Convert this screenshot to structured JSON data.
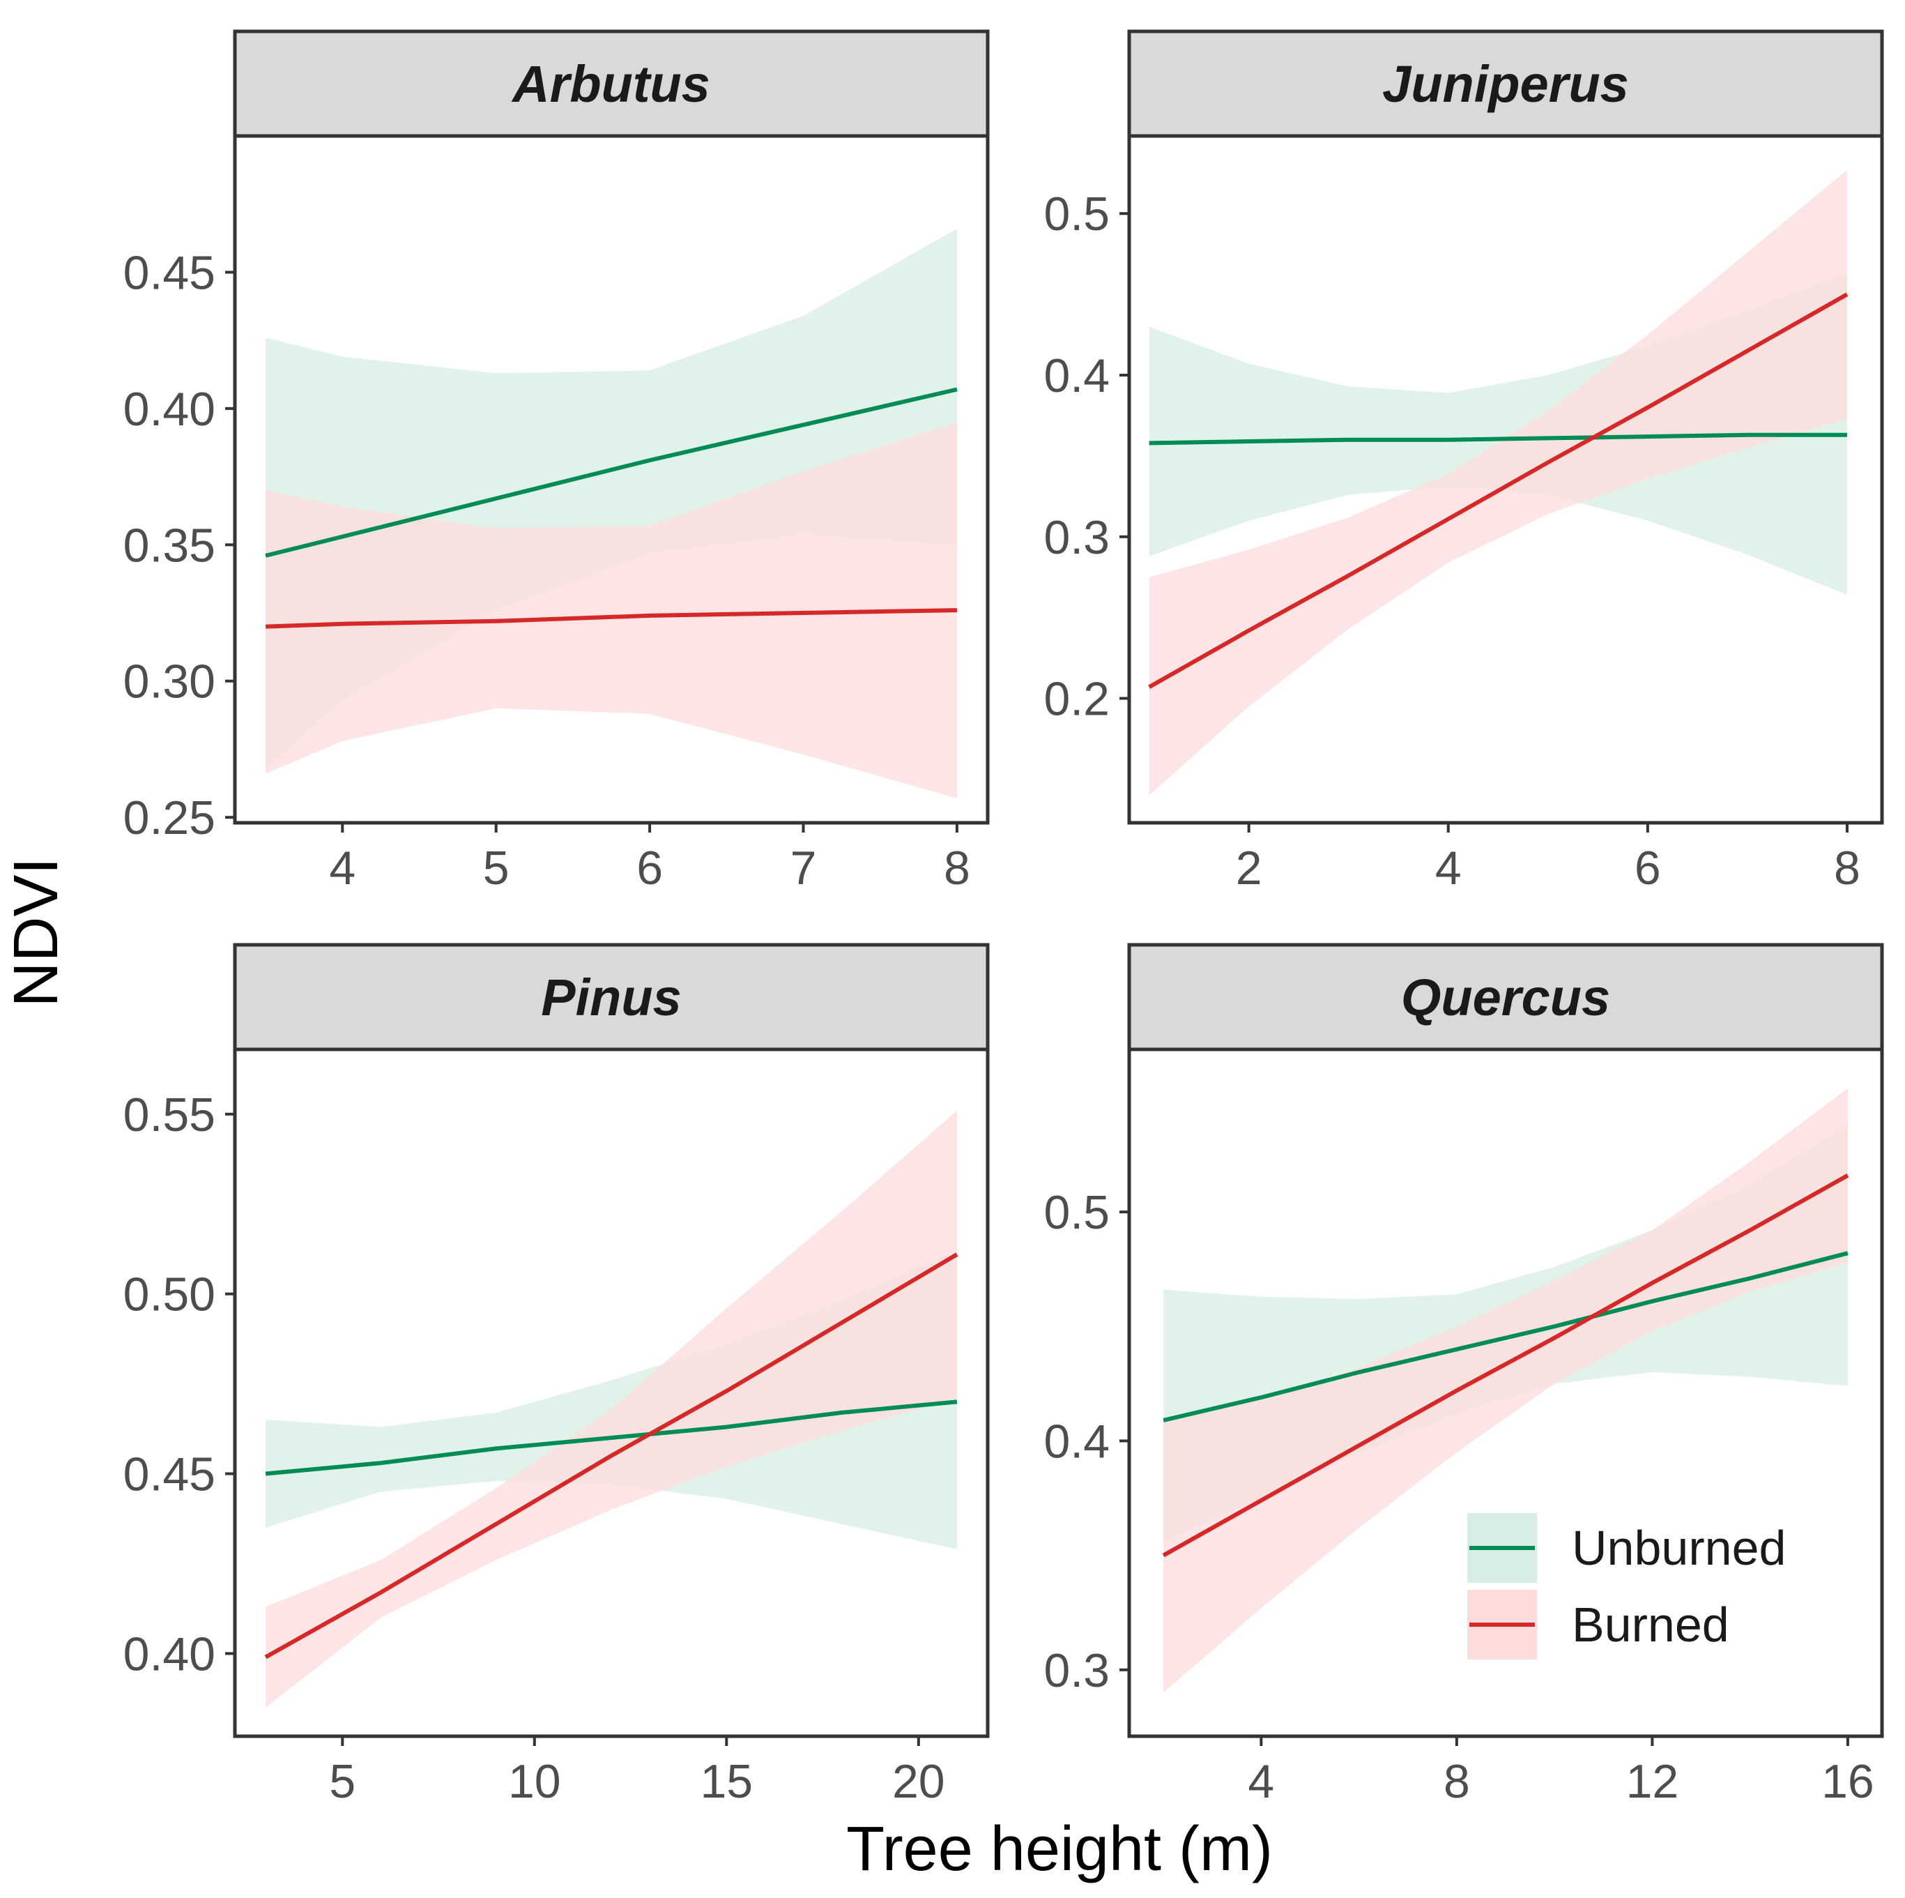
{
  "chart_data": {
    "type": "line",
    "xlabel": "Tree height (m)",
    "ylabel": "NDVI",
    "colors": {
      "Unburned": "#008c54",
      "Burned": "#d62828",
      "Unburned_band": "#d7ede3",
      "Burned_band": "#fddcdc",
      "strip": "#d9d9d9",
      "frame": "#333333"
    },
    "legend": {
      "placement": "bottom-right of Quercus panel",
      "items": [
        {
          "name": "Unburned",
          "color": "#008c54"
        },
        {
          "name": "Burned",
          "color": "#d62828"
        }
      ]
    },
    "panels": [
      {
        "title": "Arbutus",
        "xlim": [
          3.3,
          8.2
        ],
        "ylim": [
          0.248,
          0.5
        ],
        "xticks": [
          4,
          5,
          6,
          7,
          8
        ],
        "xtick_labels": [
          "4",
          "5",
          "6",
          "7",
          "8"
        ],
        "yticks": [
          0.25,
          0.3,
          0.35,
          0.4,
          0.45
        ],
        "ytick_labels": [
          "0.25",
          "0.30",
          "0.35",
          "0.40",
          "0.45"
        ],
        "series": [
          {
            "name": "Unburned",
            "x": [
              3.5,
              4,
              5,
              6,
              7,
              8
            ],
            "y": [
              0.346,
              0.353,
              0.367,
              0.381,
              0.394,
              0.407
            ],
            "lower": [
              0.268,
              0.293,
              0.326,
              0.347,
              0.354,
              0.35
            ],
            "upper": [
              0.426,
              0.419,
              0.413,
              0.414,
              0.434,
              0.466
            ]
          },
          {
            "name": "Burned",
            "x": [
              3.5,
              4,
              5,
              6,
              7,
              8
            ],
            "y": [
              0.32,
              0.321,
              0.322,
              0.324,
              0.325,
              0.326
            ],
            "lower": [
              0.266,
              0.278,
              0.29,
              0.288,
              0.273,
              0.257
            ],
            "upper": [
              0.37,
              0.364,
              0.356,
              0.357,
              0.377,
              0.395
            ]
          }
        ]
      },
      {
        "title": "Juniperus",
        "xlim": [
          0.8,
          8.35
        ],
        "ylim": [
          0.123,
          0.548
        ],
        "xticks": [
          2,
          4,
          6,
          8
        ],
        "xtick_labels": [
          "2",
          "4",
          "6",
          "8"
        ],
        "yticks": [
          0.2,
          0.3,
          0.4,
          0.5
        ],
        "ytick_labels": [
          "0.2",
          "0.3",
          "0.4",
          "0.5"
        ],
        "series": [
          {
            "name": "Unburned",
            "x": [
              1,
              2,
              3,
              4,
              5,
              6,
              7,
              8
            ],
            "y": [
              0.358,
              0.359,
              0.36,
              0.36,
              0.361,
              0.362,
              0.363,
              0.363
            ],
            "lower": [
              0.288,
              0.31,
              0.326,
              0.331,
              0.326,
              0.31,
              0.289,
              0.264
            ],
            "upper": [
              0.43,
              0.407,
              0.393,
              0.389,
              0.4,
              0.418,
              0.44,
              0.463
            ]
          },
          {
            "name": "Burned",
            "x": [
              1,
              2,
              3,
              4,
              5,
              6,
              7,
              8
            ],
            "y": [
              0.207,
              0.242,
              0.276,
              0.311,
              0.346,
              0.38,
              0.415,
              0.45
            ],
            "lower": [
              0.14,
              0.195,
              0.243,
              0.284,
              0.314,
              0.336,
              0.355,
              0.373
            ],
            "upper": [
              0.275,
              0.292,
              0.312,
              0.339,
              0.378,
              0.425,
              0.476,
              0.527
            ]
          }
        ]
      },
      {
        "title": "Pinus",
        "xlim": [
          2.2,
          21.8
        ],
        "ylim": [
          0.377,
          0.568
        ],
        "xticks": [
          5,
          10,
          15,
          20
        ],
        "xtick_labels": [
          "5",
          "10",
          "15",
          "20"
        ],
        "yticks": [
          0.4,
          0.45,
          0.5,
          0.55
        ],
        "ytick_labels": [
          "0.40",
          "0.45",
          "0.50",
          "0.55"
        ],
        "series": [
          {
            "name": "Unburned",
            "x": [
              3,
              6,
              9,
              12,
              15,
              18,
              21
            ],
            "y": [
              0.45,
              0.453,
              0.457,
              0.46,
              0.463,
              0.467,
              0.47
            ],
            "lower": [
              0.435,
              0.445,
              0.448,
              0.447,
              0.443,
              0.436,
              0.429
            ],
            "upper": [
              0.465,
              0.463,
              0.467,
              0.476,
              0.486,
              0.498,
              0.512
            ]
          },
          {
            "name": "Burned",
            "x": [
              3,
              6,
              9,
              12,
              15,
              18,
              21
            ],
            "y": [
              0.399,
              0.417,
              0.436,
              0.455,
              0.473,
              0.492,
              0.511
            ],
            "lower": [
              0.385,
              0.41,
              0.426,
              0.44,
              0.452,
              0.462,
              0.471
            ],
            "upper": [
              0.413,
              0.426,
              0.446,
              0.468,
              0.496,
              0.523,
              0.551
            ]
          }
        ]
      },
      {
        "title": "Quercus",
        "xlim": [
          1.3,
          16.7
        ],
        "ylim": [
          0.271,
          0.571
        ],
        "xticks": [
          4,
          8,
          12,
          16
        ],
        "xtick_labels": [
          "4",
          "8",
          "12",
          "16"
        ],
        "yticks": [
          0.3,
          0.4,
          0.5
        ],
        "ytick_labels": [
          "0.3",
          "0.4",
          "0.5"
        ],
        "series": [
          {
            "name": "Unburned",
            "x": [
              2,
              4,
              6,
              8,
              10,
              12,
              14,
              16
            ],
            "y": [
              0.409,
              0.419,
              0.43,
              0.44,
              0.45,
              0.461,
              0.471,
              0.482
            ],
            "lower": [
              0.356,
              0.375,
              0.395,
              0.412,
              0.425,
              0.43,
              0.428,
              0.424
            ],
            "upper": [
              0.466,
              0.463,
              0.462,
              0.464,
              0.476,
              0.492,
              0.512,
              0.538
            ]
          },
          {
            "name": "Burned",
            "x": [
              2,
              4,
              6,
              8,
              10,
              12,
              14,
              16
            ],
            "y": [
              0.35,
              0.374,
              0.398,
              0.422,
              0.445,
              0.469,
              0.492,
              0.516
            ],
            "lower": [
              0.29,
              0.327,
              0.362,
              0.395,
              0.425,
              0.448,
              0.465,
              0.478
            ],
            "upper": [
              0.408,
              0.418,
              0.432,
              0.45,
              0.47,
              0.492,
              0.522,
              0.554
            ]
          }
        ]
      }
    ]
  }
}
